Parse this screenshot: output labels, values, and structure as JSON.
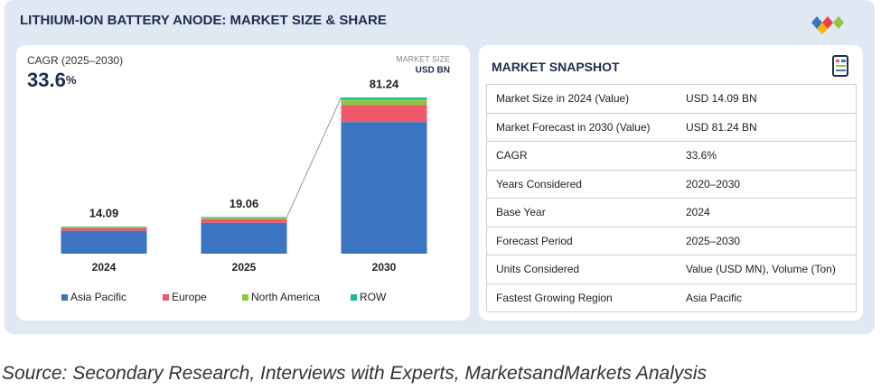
{
  "header": {
    "title": "LITHIUM-ION BATTERY ANODE: MARKET SIZE & SHARE"
  },
  "chart_data": {
    "type": "bar",
    "stacked": true,
    "annotation_label": "CAGR (2025–2030)",
    "annotation_value": "33.6",
    "annotation_unit": "%",
    "unit_label_1": "MARKET SIZE",
    "unit_label_2": "USD BN",
    "categories": [
      "2024",
      "2025",
      "2030"
    ],
    "totals": [
      14.09,
      19.06,
      81.24
    ],
    "series": [
      {
        "name": "Asia Pacific",
        "color": "#3b74c0",
        "values": [
          11.9,
          16.1,
          68.5
        ]
      },
      {
        "name": "Europe",
        "color": "#ef5a6a",
        "values": [
          1.4,
          1.9,
          8.9
        ]
      },
      {
        "name": "North America",
        "color": "#8dc63f",
        "values": [
          0.55,
          0.75,
          2.8
        ]
      },
      {
        "name": "ROW",
        "color": "#1fb5a0",
        "values": [
          0.24,
          0.31,
          1.04
        ]
      }
    ]
  },
  "snapshot": {
    "title": "MARKET SNAPSHOT",
    "rows": [
      [
        "Market Size in 2024 (Value)",
        "USD 14.09 BN"
      ],
      [
        "Market Forecast in 2030 (Value)",
        "USD 81.24 BN"
      ],
      [
        "CAGR",
        "33.6%"
      ],
      [
        "Years Considered",
        "2020–2030"
      ],
      [
        "Base Year",
        "2024"
      ],
      [
        "Forecast Period",
        "2025–2030"
      ],
      [
        "Units Considered",
        "Value (USD MN), Volume (Ton)"
      ],
      [
        "Fastest Growing Region",
        "Asia Pacific"
      ]
    ]
  },
  "source": "Source: Secondary Research, Interviews with Experts, MarketsandMarkets Analysis"
}
